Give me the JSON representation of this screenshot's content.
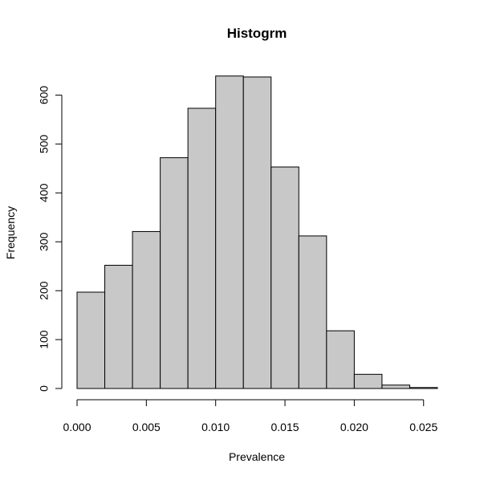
{
  "chart_data": {
    "type": "bar",
    "title": "Histogrm",
    "xlabel": "Prevalence",
    "ylabel": "Frequency",
    "bins": [
      {
        "start": 0.0,
        "end": 0.002,
        "value": 197
      },
      {
        "start": 0.002,
        "end": 0.004,
        "value": 252
      },
      {
        "start": 0.004,
        "end": 0.006,
        "value": 321
      },
      {
        "start": 0.006,
        "end": 0.008,
        "value": 472
      },
      {
        "start": 0.008,
        "end": 0.01,
        "value": 573
      },
      {
        "start": 0.01,
        "end": 0.012,
        "value": 639
      },
      {
        "start": 0.012,
        "end": 0.014,
        "value": 637
      },
      {
        "start": 0.014,
        "end": 0.016,
        "value": 453
      },
      {
        "start": 0.016,
        "end": 0.018,
        "value": 312
      },
      {
        "start": 0.018,
        "end": 0.02,
        "value": 118
      },
      {
        "start": 0.02,
        "end": 0.022,
        "value": 29
      },
      {
        "start": 0.022,
        "end": 0.024,
        "value": 7
      },
      {
        "start": 0.024,
        "end": 0.026,
        "value": 2
      }
    ],
    "xlim": [
      0.0,
      0.026
    ],
    "ylim": [
      0,
      650
    ],
    "x_ticks": [
      0.0,
      0.005,
      0.01,
      0.015,
      0.02,
      0.025
    ],
    "x_tick_labels": [
      "0.000",
      "0.005",
      "0.010",
      "0.015",
      "0.020",
      "0.025"
    ],
    "y_ticks": [
      0,
      100,
      200,
      300,
      400,
      500,
      600
    ],
    "y_tick_labels": [
      "0",
      "100",
      "200",
      "300",
      "400",
      "500",
      "600"
    ],
    "grid": false,
    "legend": "none",
    "colors": {
      "bar_fill": "#c8c8c8",
      "bar_stroke": "#000000",
      "axis": "#000000",
      "background": "#ffffff"
    }
  }
}
